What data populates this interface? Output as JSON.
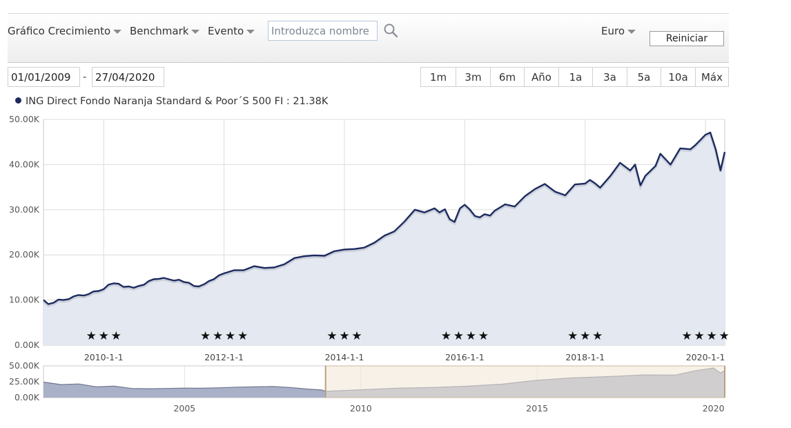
{
  "toolbar": {
    "growth_menu": "Gráfico Crecimiento",
    "benchmark_menu": "Benchmark",
    "event_menu": "Evento",
    "search_placeholder": "Introduzca nombre",
    "currency": "Euro",
    "reset_label": "Reiniciar"
  },
  "date_range": {
    "start": "01/01/2009",
    "separator": "-",
    "end": "27/04/2020"
  },
  "range_buttons": [
    "1m",
    "3m",
    "6m",
    "Año",
    "1a",
    "3a",
    "5a",
    "10a",
    "Máx"
  ],
  "legend": {
    "label": "ING Direct Fondo Naranja Standard & Poor´S 500 FI : 21.38K"
  },
  "colors": {
    "line": "#1c2a5e",
    "area": "#e4e8f1",
    "grid": "#dcdcdc",
    "navigator_area": "#a9b1c8",
    "navigator_selection": "#f1e6d6"
  },
  "icons": {
    "search": "search-icon",
    "stars": "rating-star-icon"
  },
  "chart_data": [
    {
      "type": "area",
      "series": [
        {
          "name": "ING Direct Fondo Naranja Standard & Poor´S 500 FI",
          "x": [
            2009.0,
            2009.08,
            2009.17,
            2009.25,
            2009.33,
            2009.42,
            2009.5,
            2009.58,
            2009.67,
            2009.75,
            2009.83,
            2009.92,
            2010.0,
            2010.08,
            2010.17,
            2010.25,
            2010.33,
            2010.42,
            2010.5,
            2010.58,
            2010.67,
            2010.75,
            2010.83,
            2010.92,
            2011.0,
            2011.08,
            2011.17,
            2011.25,
            2011.33,
            2011.42,
            2011.5,
            2011.58,
            2011.67,
            2011.75,
            2011.83,
            2011.92,
            2012.0,
            2012.17,
            2012.33,
            2012.5,
            2012.67,
            2012.83,
            2013.0,
            2013.17,
            2013.33,
            2013.5,
            2013.67,
            2013.83,
            2014.0,
            2014.17,
            2014.33,
            2014.5,
            2014.67,
            2014.83,
            2015.0,
            2015.17,
            2015.33,
            2015.5,
            2015.58,
            2015.67,
            2015.75,
            2015.83,
            2015.92,
            2016.0,
            2016.08,
            2016.17,
            2016.25,
            2016.33,
            2016.42,
            2016.5,
            2016.67,
            2016.83,
            2017.0,
            2017.17,
            2017.33,
            2017.5,
            2017.67,
            2017.83,
            2018.0,
            2018.08,
            2018.17,
            2018.25,
            2018.42,
            2018.58,
            2018.75,
            2018.83,
            2018.92,
            2019.0,
            2019.17,
            2019.25,
            2019.42,
            2019.58,
            2019.75,
            2019.83,
            2020.0,
            2020.08,
            2020.17,
            2020.25,
            2020.32
          ],
          "values": [
            10000,
            9100,
            9400,
            10100,
            10000,
            10200,
            10800,
            11100,
            11000,
            11300,
            11900,
            12000,
            12400,
            13400,
            13700,
            13600,
            12900,
            13000,
            12700,
            13100,
            13400,
            14200,
            14600,
            14700,
            14900,
            14600,
            14300,
            14500,
            14000,
            13800,
            13100,
            13000,
            13500,
            14200,
            14600,
            15500,
            15900,
            16600,
            16600,
            17500,
            17100,
            17200,
            17900,
            19300,
            19700,
            19900,
            19800,
            20800,
            21200,
            21300,
            21600,
            22700,
            24300,
            25200,
            27400,
            30000,
            29400,
            30300,
            29400,
            30100,
            27900,
            27300,
            30300,
            31100,
            30100,
            28600,
            28300,
            29000,
            28700,
            29800,
            31200,
            30700,
            33000,
            34600,
            35700,
            34000,
            33200,
            35600,
            35800,
            36600,
            35800,
            34900,
            37500,
            40400,
            38700,
            40000,
            35400,
            37500,
            39700,
            42400,
            40000,
            43600,
            43400,
            44300,
            46600,
            47100,
            43400,
            38700,
            42800
          ]
        }
      ],
      "ylim": [
        0,
        50000
      ],
      "yticks": [
        "0.00K",
        "10.00K",
        "20.00K",
        "30.00K",
        "40.00K",
        "50.00K"
      ],
      "xlim": [
        2009.0,
        2020.32
      ],
      "xticks": [
        {
          "x": 2010.0,
          "label": "2010-1-1"
        },
        {
          "x": 2012.0,
          "label": "2012-1-1"
        },
        {
          "x": 2014.0,
          "label": "2014-1-1"
        },
        {
          "x": 2016.0,
          "label": "2016-1-1"
        },
        {
          "x": 2018.0,
          "label": "2018-1-1"
        },
        {
          "x": 2020.0,
          "label": "2020-1-1"
        }
      ],
      "rating_events": [
        {
          "x": 2010.0,
          "stars": 3
        },
        {
          "x": 2012.0,
          "stars": 4
        },
        {
          "x": 2014.0,
          "stars": 3
        },
        {
          "x": 2016.0,
          "stars": 4
        },
        {
          "x": 2018.0,
          "stars": 3
        },
        {
          "x": 2020.0,
          "stars": 4
        }
      ],
      "grid": true
    },
    {
      "type": "area",
      "series": [
        {
          "name": "navigator",
          "x": [
            2001.0,
            2001.5,
            2002.0,
            2002.5,
            2003.0,
            2003.5,
            2004.0,
            2004.5,
            2005.0,
            2005.5,
            2006.0,
            2006.5,
            2007.0,
            2007.5,
            2008.0,
            2008.5,
            2008.9,
            2009.0,
            2010.0,
            2011.0,
            2012.0,
            2013.0,
            2014.0,
            2015.0,
            2016.0,
            2017.0,
            2018.0,
            2018.9,
            2019.5,
            2020.0,
            2020.2,
            2020.32
          ],
          "values": [
            24500,
            20500,
            21500,
            17000,
            18000,
            14500,
            14000,
            14500,
            15000,
            14800,
            15500,
            16500,
            17000,
            17500,
            16000,
            13500,
            12000,
            10000,
            12400,
            14900,
            15900,
            17900,
            21200,
            27400,
            31100,
            33000,
            35800,
            35400,
            42400,
            46600,
            38700,
            42800
          ]
        }
      ],
      "ylim": [
        0,
        50000
      ],
      "yticks": [
        "0.00K",
        "25.00K",
        "50.00K"
      ],
      "xlim": [
        2001.0,
        2020.32
      ],
      "xticks": [
        {
          "x": 2005,
          "label": "2005"
        },
        {
          "x": 2010,
          "label": "2010"
        },
        {
          "x": 2015,
          "label": "2015"
        },
        {
          "x": 2020,
          "label": "2020"
        }
      ],
      "selection": [
        2009.0,
        2020.32
      ]
    }
  ]
}
